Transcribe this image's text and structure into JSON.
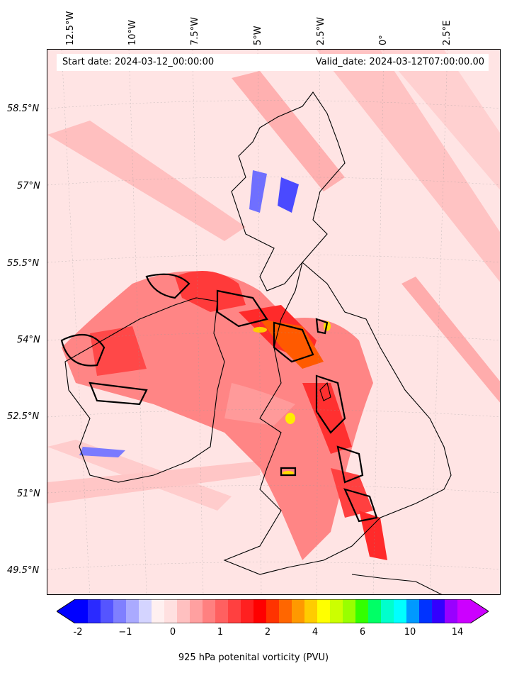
{
  "header": {
    "start_date": "Start date: 2024-03-12_00:00:00",
    "valid_date": "Valid_date: 2024-03-12T07:00:00.00"
  },
  "map": {
    "longitude_labels": [
      "12.5°W",
      "10°W",
      "7.5°W",
      "5°W",
      "2.5°W",
      "0°",
      "2.5°E"
    ],
    "latitude_labels": [
      "58.5°N",
      "57°N",
      "55.5°N",
      "54°N",
      "52.5°N",
      "51°N",
      "49.5°N"
    ],
    "background_color": "#ffe9e9",
    "coastline_color": "#000000"
  },
  "colorbar": {
    "label": "925 hPa potenital vorticity (PVU)",
    "tick_labels": [
      "-2",
      "−1",
      "0",
      "1",
      "2",
      "4",
      "6",
      "10",
      "14"
    ],
    "colors": [
      "#0000ff",
      "#2a2aff",
      "#5555ff",
      "#7f7fff",
      "#aaaaff",
      "#d4d4ff",
      "#fff0f0",
      "#ffe0e0",
      "#ffc0c0",
      "#ffa0a0",
      "#ff8080",
      "#ff6060",
      "#ff4040",
      "#ff2020",
      "#ff0000",
      "#ff3300",
      "#ff6600",
      "#ff9900",
      "#ffcc00",
      "#ffff00",
      "#ccff00",
      "#99ff00",
      "#33ff00",
      "#00ff66",
      "#00ffcc",
      "#00ffff",
      "#0099ff",
      "#0033ff",
      "#3300ff",
      "#9900ff",
      "#cc00ff"
    ],
    "under_color": "#0000ff",
    "over_color": "#cc00ff"
  }
}
